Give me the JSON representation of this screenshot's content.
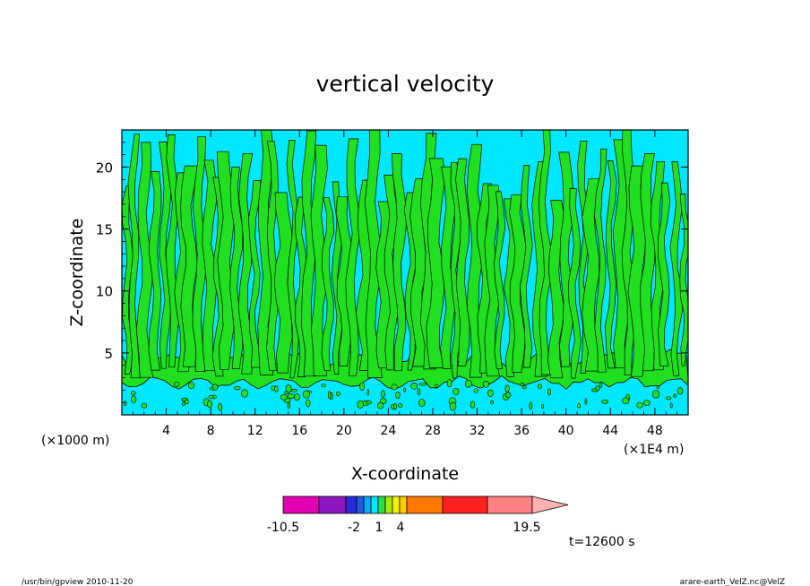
{
  "chart_data": {
    "type": "heatmap",
    "title": "vertical velocity",
    "xlabel": "X-coordinate",
    "ylabel": "Z-coordinate",
    "x_unit_left": "(×1000 m)",
    "x_unit_right": "(×1E4 m)",
    "xlim": [
      0,
      51
    ],
    "ylim": [
      0,
      23
    ],
    "x_ticks": [
      "4",
      "8",
      "12",
      "16",
      "20",
      "24",
      "28",
      "32",
      "36",
      "40",
      "44",
      "48"
    ],
    "y_ticks": [
      "5",
      "10",
      "15",
      "20"
    ],
    "time_label": "t=12600 s",
    "colorbar": {
      "ticks": [
        "-10.5",
        "-2",
        "1",
        "4",
        "19.5"
      ],
      "colors": [
        "#e000b0",
        "#8a16c0",
        "#2a2ad8",
        "#1e5ae8",
        "#10aaf0",
        "#00e8ff",
        "#2ae04a",
        "#a8ec00",
        "#f2f200",
        "#ffd000",
        "#ff7800",
        "#ff2020",
        "#ff8080",
        "#ffb0b0"
      ]
    },
    "field_colors": {
      "positive": "#20e020",
      "negative": "#00e8ff",
      "contour": "#000000"
    }
  },
  "footer": {
    "left": "/usr/bin/gpview   2010-11-20",
    "right": "arare-earth_VelZ.nc@VelZ"
  }
}
